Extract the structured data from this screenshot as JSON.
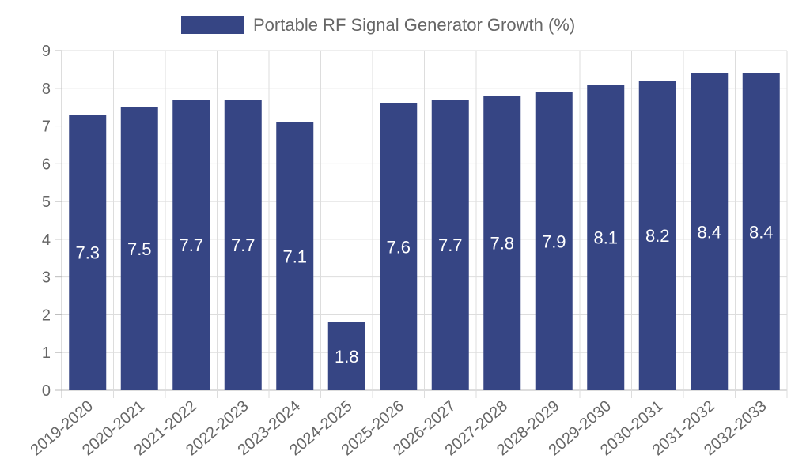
{
  "chart_data": {
    "type": "bar",
    "categories": [
      "2019-2020",
      "2020-2021",
      "2021-2022",
      "2022-2023",
      "2023-2024",
      "2024-2025",
      "2025-2026",
      "2026-2027",
      "2027-2028",
      "2028-2029",
      "2029-2030",
      "2030-2031",
      "2031-2032",
      "2032-2033"
    ],
    "series": [
      {
        "name": "Portable RF Signal Generator Growth (%)",
        "values": [
          7.3,
          7.5,
          7.7,
          7.7,
          7.1,
          1.8,
          7.6,
          7.7,
          7.8,
          7.9,
          8.1,
          8.2,
          8.4,
          8.4
        ],
        "color": "#364584"
      }
    ],
    "ylim": [
      0,
      9
    ],
    "yticks": [
      0,
      1,
      2,
      3,
      4,
      5,
      6,
      7,
      8,
      9
    ],
    "grid": true,
    "legend_position": "top",
    "data_labels": true
  }
}
